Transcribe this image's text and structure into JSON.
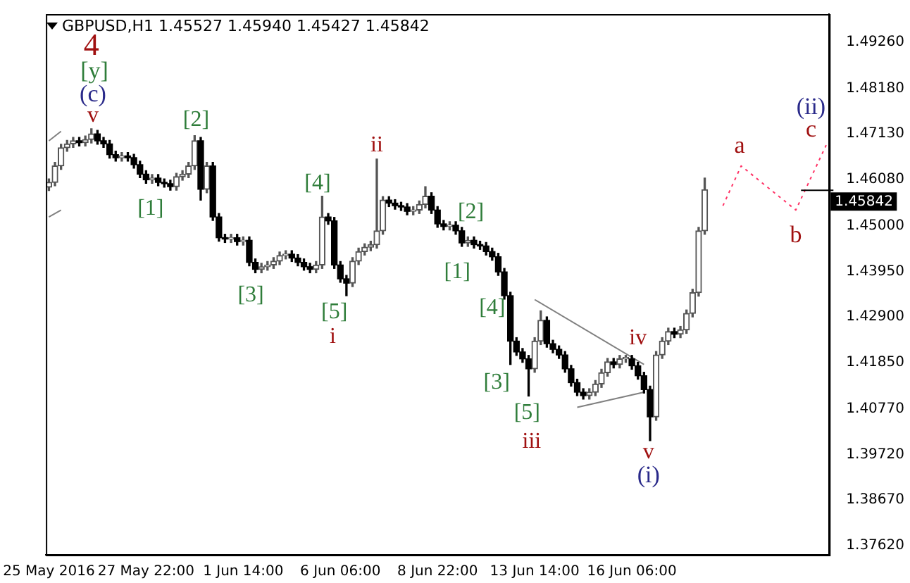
{
  "chart_data": {
    "type": "candlestick",
    "title": "GBPUSD,H1 1.45527 1.45940 1.45427 1.45842",
    "categories": [
      "25 May 2016",
      null,
      null,
      null,
      null,
      null,
      null,
      null,
      null,
      null,
      null,
      null,
      null,
      null,
      null,
      null,
      "27 May 22:00",
      null,
      null,
      null,
      null,
      null,
      null,
      null,
      null,
      null,
      null,
      null,
      null,
      null,
      null,
      null,
      "1 Jun 14:00",
      null,
      null,
      null,
      null,
      null,
      null,
      null,
      null,
      null,
      null,
      null,
      null,
      null,
      null,
      null,
      "6 Jun 06:00",
      null,
      null,
      null,
      null,
      null,
      null,
      null,
      null,
      null,
      null,
      null,
      null,
      null,
      null,
      null,
      "8 Jun 22:00",
      null,
      null,
      null,
      null,
      null,
      null,
      null,
      null,
      null,
      null,
      null,
      null,
      null,
      null,
      null,
      "13 Jun 14:00",
      null,
      null,
      null,
      null,
      null,
      null,
      null,
      null,
      null,
      null,
      null,
      null,
      null,
      null,
      null,
      "16 Jun 06:00",
      null,
      null,
      null,
      null,
      null,
      null,
      null,
      null,
      null,
      null,
      null,
      null,
      null,
      null,
      null,
      null,
      null,
      null,
      null,
      null,
      null,
      null,
      null,
      null,
      null,
      null,
      null,
      null,
      null,
      null,
      null,
      null
    ],
    "series": [
      {
        "type": "candlestick",
        "colors": [
          "#555555",
          "#555555",
          "#555555",
          "#555555",
          "#555555",
          "#000000",
          "#555555",
          "#555555",
          "#000000",
          "#000000",
          "#000000",
          "#000000",
          "#555555",
          "#000000",
          "#000000",
          "#000000",
          "#000000",
          "#555555",
          "#000000",
          "#000000",
          "#000000",
          "#555555",
          "#555555",
          "#555555",
          "#555555",
          "#000000",
          "#555555",
          "#000000",
          "#000000",
          "#000000",
          "#555555",
          "#000000",
          "#555555",
          "#000000",
          "#000000",
          "#555555",
          "#555555",
          "#555555",
          "#555555",
          "#555555",
          "#000000",
          "#000000",
          "#000000",
          "#000000",
          "#555555",
          "#555555",
          "#000000",
          "#000000",
          "#000000",
          "#000000",
          "#555555",
          "#555555",
          "#555555",
          "#555555",
          "#555555",
          "#555555",
          "#000000",
          "#000000",
          "#000000",
          "#000000",
          "#555555",
          "#555555",
          "#555555",
          "#000000",
          "#000000",
          "#000000",
          "#555555",
          "#000000",
          "#000000",
          "#555555",
          "#000000",
          "#000000",
          "#000000",
          "#000000",
          "#000000",
          "#000000",
          "#000000",
          "#000000",
          "#000000",
          "#000000",
          "#555555",
          "#555555",
          "#000000",
          "#000000",
          "#000000",
          "#000000",
          "#000000",
          "#000000",
          "#000000",
          "#555555",
          "#555555",
          "#555555",
          "#555555",
          "#000000",
          "#555555",
          "#555555",
          "#000000",
          "#000000",
          "#000000",
          "#000000",
          "#555555",
          "#555555",
          "#555555",
          "#000000",
          "#555555",
          "#555555",
          "#555555",
          "#555555",
          "#555555",
          null,
          null,
          null,
          null,
          null,
          null,
          null,
          null,
          null,
          null,
          null,
          null,
          null,
          null,
          null,
          null,
          null,
          null,
          null,
          null
        ],
        "ohlc": [
          [
            1.459,
            1.4609,
            1.4582,
            1.4601
          ],
          [
            1.4601,
            1.4647,
            1.4593,
            1.4639
          ],
          [
            1.4639,
            1.4689,
            1.4631,
            1.4681
          ],
          [
            1.4681,
            1.4698,
            1.4673,
            1.469
          ],
          [
            1.469,
            1.4705,
            1.4682,
            1.4697
          ],
          [
            1.4697,
            1.4705,
            1.4685,
            1.4693
          ],
          [
            1.4693,
            1.4708,
            1.4685,
            1.47
          ],
          [
            1.47,
            1.4725,
            1.4692,
            1.4713
          ],
          [
            1.4713,
            1.4721,
            1.4689,
            1.4697
          ],
          [
            1.4697,
            1.4705,
            1.4682,
            1.469
          ],
          [
            1.469,
            1.4698,
            1.4657,
            1.4665
          ],
          [
            1.4665,
            1.4673,
            1.465,
            1.4658
          ],
          [
            1.4658,
            1.467,
            1.465,
            1.4662
          ],
          [
            1.4662,
            1.467,
            1.465,
            1.4658
          ],
          [
            1.4658,
            1.4666,
            1.4634,
            1.4642
          ],
          [
            1.4642,
            1.465,
            1.4612,
            1.462
          ],
          [
            1.462,
            1.4628,
            1.4599,
            1.4607
          ],
          [
            1.4607,
            1.4619,
            1.4599,
            1.4611
          ],
          [
            1.4611,
            1.4619,
            1.4593,
            1.4601
          ],
          [
            1.4601,
            1.4609,
            1.459,
            1.4598
          ],
          [
            1.4598,
            1.4606,
            1.4583,
            1.4591
          ],
          [
            1.4591,
            1.4622,
            1.4583,
            1.4614
          ],
          [
            1.4614,
            1.4628,
            1.4606,
            1.462
          ],
          [
            1.462,
            1.4647,
            1.4612,
            1.4639
          ],
          [
            1.4639,
            1.4709,
            1.4631,
            1.4697
          ],
          [
            1.4697,
            1.4705,
            1.456,
            1.4585
          ],
          [
            1.4585,
            1.4647,
            1.4577,
            1.4639
          ],
          [
            1.4639,
            1.4647,
            1.4513,
            1.4521
          ],
          [
            1.4521,
            1.4529,
            1.4465,
            1.4473
          ],
          [
            1.4473,
            1.4481,
            1.4462,
            1.447
          ],
          [
            1.447,
            1.4481,
            1.4462,
            1.4473
          ],
          [
            1.4473,
            1.4481,
            1.4456,
            1.4464
          ],
          [
            1.4464,
            1.4475,
            1.4456,
            1.4467
          ],
          [
            1.4467,
            1.4475,
            1.4408,
            1.4416
          ],
          [
            1.4416,
            1.4424,
            1.4392,
            1.44
          ],
          [
            1.44,
            1.4414,
            1.4392,
            1.4406
          ],
          [
            1.4406,
            1.4418,
            1.4398,
            1.441
          ],
          [
            1.441,
            1.4427,
            1.4402,
            1.4419
          ],
          [
            1.4419,
            1.444,
            1.4411,
            1.4432
          ],
          [
            1.4432,
            1.4443,
            1.4424,
            1.4435
          ],
          [
            1.4435,
            1.4443,
            1.4418,
            1.4426
          ],
          [
            1.4426,
            1.4434,
            1.4408,
            1.4416
          ],
          [
            1.4416,
            1.4424,
            1.4398,
            1.4406
          ],
          [
            1.4406,
            1.4414,
            1.4392,
            1.44
          ],
          [
            1.44,
            1.4418,
            1.4392,
            1.441
          ],
          [
            1.441,
            1.4569,
            1.4402,
            1.4521
          ],
          [
            1.4521,
            1.4529,
            1.4504,
            1.4512
          ],
          [
            1.4512,
            1.452,
            1.4402,
            1.441
          ],
          [
            1.441,
            1.4418,
            1.437,
            1.4378
          ],
          [
            1.4378,
            1.4386,
            1.4339,
            1.4368
          ],
          [
            1.4368,
            1.4427,
            1.436,
            1.4419
          ],
          [
            1.4419,
            1.4449,
            1.4411,
            1.4441
          ],
          [
            1.4441,
            1.4459,
            1.4433,
            1.4451
          ],
          [
            1.4451,
            1.4465,
            1.4443,
            1.4457
          ],
          [
            1.4457,
            1.4655,
            1.4449,
            1.4489
          ],
          [
            1.4489,
            1.4568,
            1.4481,
            1.456
          ],
          [
            1.456,
            1.4568,
            1.4545,
            1.4553
          ],
          [
            1.4553,
            1.4561,
            1.4539,
            1.4547
          ],
          [
            1.4547,
            1.4555,
            1.4536,
            1.4544
          ],
          [
            1.4544,
            1.4552,
            1.4526,
            1.4534
          ],
          [
            1.4534,
            1.4545,
            1.4526,
            1.4537
          ],
          [
            1.4537,
            1.4558,
            1.4529,
            1.455
          ],
          [
            1.455,
            1.4591,
            1.4542,
            1.4569
          ],
          [
            1.4569,
            1.4577,
            1.4529,
            1.4537
          ],
          [
            1.4537,
            1.4545,
            1.4497,
            1.4505
          ],
          [
            1.4505,
            1.4513,
            1.4491,
            1.4499
          ],
          [
            1.4499,
            1.451,
            1.4491,
            1.4502
          ],
          [
            1.4502,
            1.451,
            1.4481,
            1.4489
          ],
          [
            1.4489,
            1.4497,
            1.4453,
            1.4461
          ],
          [
            1.4461,
            1.4475,
            1.4453,
            1.4467
          ],
          [
            1.4467,
            1.4475,
            1.4449,
            1.4457
          ],
          [
            1.4457,
            1.4465,
            1.4446,
            1.4454
          ],
          [
            1.4454,
            1.4462,
            1.4433,
            1.4441
          ],
          [
            1.4441,
            1.4449,
            1.4421,
            1.4429
          ],
          [
            1.4429,
            1.4437,
            1.4386,
            1.4394
          ],
          [
            1.4394,
            1.4402,
            1.4331,
            1.4339
          ],
          [
            1.4339,
            1.4347,
            1.418,
            1.4234
          ],
          [
            1.4234,
            1.4242,
            1.4201,
            1.4209
          ],
          [
            1.4209,
            1.4217,
            1.4185,
            1.4193
          ],
          [
            1.4193,
            1.4201,
            1.4107,
            1.417
          ],
          [
            1.417,
            1.4242,
            1.4162,
            1.4234
          ],
          [
            1.4234,
            1.4304,
            1.4226,
            1.4282
          ],
          [
            1.4282,
            1.429,
            1.422,
            1.4228
          ],
          [
            1.4228,
            1.4236,
            1.4207,
            1.4215
          ],
          [
            1.4215,
            1.4223,
            1.4194,
            1.4202
          ],
          [
            1.4202,
            1.421,
            1.4162,
            1.417
          ],
          [
            1.417,
            1.4178,
            1.413,
            1.4138
          ],
          [
            1.4138,
            1.4146,
            1.4108,
            1.4116
          ],
          [
            1.4116,
            1.4124,
            1.41,
            1.4108
          ],
          [
            1.4108,
            1.4124,
            1.41,
            1.4116
          ],
          [
            1.4116,
            1.4143,
            1.4108,
            1.4135
          ],
          [
            1.4135,
            1.4169,
            1.4127,
            1.4161
          ],
          [
            1.4161,
            1.4194,
            1.4153,
            1.4186
          ],
          [
            1.4186,
            1.4194,
            1.4172,
            1.418
          ],
          [
            1.418,
            1.4201,
            1.4172,
            1.4193
          ],
          [
            1.4193,
            1.4201,
            1.4185,
            1.4193
          ],
          [
            1.4193,
            1.4201,
            1.4169,
            1.4177
          ],
          [
            1.4177,
            1.4185,
            1.4146,
            1.4154
          ],
          [
            1.4154,
            1.4162,
            1.4114,
            1.4122
          ],
          [
            1.4122,
            1.413,
            1.4004,
            1.4059
          ],
          [
            1.4059,
            1.421,
            1.4051,
            1.4202
          ],
          [
            1.4202,
            1.4242,
            1.4194,
            1.4234
          ],
          [
            1.4234,
            1.4264,
            1.4226,
            1.4256
          ],
          [
            1.4256,
            1.4264,
            1.4242,
            1.425
          ],
          [
            1.425,
            1.4268,
            1.4242,
            1.426
          ],
          [
            1.426,
            1.4306,
            1.4252,
            1.4298
          ],
          [
            1.4298,
            1.4354,
            1.429,
            1.4346
          ],
          [
            1.4346,
            1.4497,
            1.4338,
            1.4489
          ],
          [
            1.4489,
            1.4611,
            1.4481,
            1.45842
          ],
          null,
          null,
          null,
          null,
          null,
          null,
          null,
          null,
          null,
          null,
          null,
          null,
          null,
          null,
          null,
          null,
          null,
          null,
          null,
          null
        ]
      },
      {
        "type": "line",
        "color": "#ff3366",
        "line_style": "dotted",
        "values": [
          null,
          null,
          null,
          null,
          null,
          null,
          null,
          null,
          null,
          null,
          null,
          null,
          null,
          null,
          null,
          null,
          null,
          null,
          null,
          null,
          null,
          null,
          null,
          null,
          null,
          null,
          null,
          null,
          null,
          null,
          null,
          null,
          null,
          null,
          null,
          null,
          null,
          null,
          null,
          null,
          null,
          null,
          null,
          null,
          null,
          null,
          null,
          null,
          null,
          null,
          null,
          null,
          null,
          null,
          null,
          null,
          null,
          null,
          null,
          null,
          null,
          null,
          null,
          null,
          null,
          null,
          null,
          null,
          null,
          null,
          null,
          null,
          null,
          null,
          null,
          null,
          null,
          null,
          null,
          null,
          null,
          null,
          null,
          null,
          null,
          null,
          null,
          null,
          null,
          null,
          null,
          null,
          null,
          null,
          null,
          null,
          null,
          null,
          null,
          null,
          null,
          null,
          null,
          null,
          null,
          null,
          null,
          null,
          null,
          null,
          null,
          1.4547,
          null,
          null,
          1.4639,
          null,
          null,
          null,
          null,
          null,
          null,
          null,
          null,
          1.4537,
          null,
          null,
          null,
          null,
          1.4687
        ]
      },
      {
        "type": "line",
        "color": "#808080",
        "line_style": "solid",
        "values": [
          null,
          null,
          null,
          null,
          null,
          null,
          null,
          null,
          null,
          null,
          null,
          null,
          null,
          null,
          null,
          null,
          null,
          null,
          null,
          null,
          null,
          null,
          null,
          null,
          null,
          null,
          null,
          null,
          null,
          null,
          null,
          null,
          null,
          null,
          null,
          null,
          null,
          null,
          null,
          null,
          null,
          null,
          null,
          null,
          null,
          null,
          null,
          null,
          null,
          null,
          null,
          null,
          null,
          null,
          null,
          null,
          null,
          null,
          null,
          null,
          null,
          null,
          null,
          null,
          null,
          null,
          null,
          null,
          null,
          null,
          null,
          null,
          null,
          null,
          null,
          null,
          null,
          null,
          null,
          null,
          1.433,
          null,
          null,
          null,
          null,
          null,
          null,
          null,
          null,
          null,
          null,
          null,
          null,
          null,
          null,
          null,
          null,
          null,
          1.418,
          null,
          null,
          null,
          null,
          null,
          null,
          null,
          null,
          null,
          null,
          null,
          null,
          null,
          null,
          null,
          null,
          null,
          null,
          null,
          null,
          null,
          null,
          null,
          null,
          null,
          null,
          null,
          null,
          null,
          null
        ]
      },
      {
        "type": "line",
        "color": "#808080",
        "line_style": "solid",
        "values": [
          null,
          null,
          null,
          null,
          null,
          null,
          null,
          null,
          null,
          null,
          null,
          null,
          null,
          null,
          null,
          null,
          null,
          null,
          null,
          null,
          null,
          null,
          null,
          null,
          null,
          null,
          null,
          null,
          null,
          null,
          null,
          null,
          null,
          null,
          null,
          null,
          null,
          null,
          null,
          null,
          null,
          null,
          null,
          null,
          null,
          null,
          null,
          null,
          null,
          null,
          null,
          null,
          null,
          null,
          null,
          null,
          null,
          null,
          null,
          null,
          null,
          null,
          null,
          null,
          null,
          null,
          null,
          null,
          null,
          null,
          null,
          null,
          null,
          null,
          null,
          null,
          null,
          null,
          null,
          null,
          null,
          null,
          null,
          null,
          null,
          null,
          null,
          1.4081,
          null,
          null,
          null,
          null,
          null,
          null,
          null,
          null,
          null,
          null,
          1.4116,
          null,
          null,
          null,
          null,
          null,
          null,
          null,
          null,
          null,
          null,
          null,
          null,
          null,
          null,
          null,
          null,
          null,
          null,
          null,
          null,
          null,
          null,
          null,
          null,
          null,
          null,
          null,
          null,
          null,
          null
        ]
      },
      {
        "type": "line",
        "color": "#808080",
        "line_style": "solid",
        "values": [
          1.4697,
          null,
          1.4719,
          null,
          null,
          null,
          null,
          null,
          null,
          null,
          null,
          null,
          null,
          null,
          null,
          null,
          null,
          null,
          null,
          null,
          null,
          null,
          null,
          null,
          null,
          null,
          null,
          null,
          null,
          null,
          null,
          null,
          null,
          null,
          null,
          null,
          null,
          null,
          null,
          null,
          null,
          null,
          null,
          null,
          null,
          null,
          null,
          null,
          null,
          null,
          null,
          null,
          null,
          null,
          null,
          null,
          null,
          null,
          null,
          null,
          null,
          null,
          null,
          null,
          null,
          null,
          null,
          null,
          null,
          null,
          null,
          null,
          null,
          null,
          null,
          null,
          null,
          null,
          null,
          null,
          null,
          null,
          null,
          null,
          null,
          null,
          null,
          null,
          null,
          null,
          null,
          null,
          null,
          null,
          null,
          null,
          null,
          null,
          null,
          null,
          null,
          null,
          null,
          null,
          null,
          null,
          null,
          null,
          null,
          null,
          null,
          null,
          null,
          null,
          null,
          null,
          null,
          null,
          null,
          null,
          null,
          null,
          null,
          null,
          null,
          null,
          null,
          null,
          null
        ]
      },
      {
        "type": "line",
        "color": "#808080",
        "line_style": "solid",
        "values": [
          1.4521,
          null,
          1.4537,
          null,
          null,
          null,
          null,
          null,
          null,
          null,
          null,
          null,
          null,
          null,
          null,
          null,
          null,
          null,
          null,
          null,
          null,
          null,
          null,
          null,
          null,
          null,
          null,
          null,
          null,
          null,
          null,
          null,
          null,
          null,
          null,
          null,
          null,
          null,
          null,
          null,
          null,
          null,
          null,
          null,
          null,
          null,
          null,
          null,
          null,
          null,
          null,
          null,
          null,
          null,
          null,
          null,
          null,
          null,
          null,
          null,
          null,
          null,
          null,
          null,
          null,
          null,
          null,
          null,
          null,
          null,
          null,
          null,
          null,
          null,
          null,
          null,
          null,
          null,
          null,
          null,
          null,
          null,
          null,
          null,
          null,
          null,
          null,
          null,
          null,
          null,
          null,
          null,
          null,
          null,
          null,
          null,
          null,
          null,
          null,
          null,
          null,
          null,
          null,
          null,
          null,
          null,
          null,
          null,
          null,
          null,
          null,
          null,
          null,
          null,
          null,
          null,
          null,
          null,
          null,
          null,
          null,
          null,
          null,
          null,
          null,
          null,
          null,
          null,
          null
        ]
      }
    ],
    "ylim": [
      1.374,
      1.499
    ],
    "yticks": [
      {
        "value": 1.3762,
        "label": "1.37620"
      },
      {
        "value": 1.3867,
        "label": "1.38670"
      },
      {
        "value": 1.3972,
        "label": "1.39720"
      },
      {
        "value": 1.4077,
        "label": "1.40770"
      },
      {
        "value": 1.4185,
        "label": "1.41850"
      },
      {
        "value": 1.429,
        "label": "1.42900"
      },
      {
        "value": 1.4395,
        "label": "1.43950"
      },
      {
        "value": 1.45,
        "label": "1.45000"
      },
      {
        "value": 1.4608,
        "label": "1.46080"
      },
      {
        "value": 1.4713,
        "label": "1.47130"
      },
      {
        "value": 1.4818,
        "label": "1.48180"
      },
      {
        "value": 1.4926,
        "label": "1.49260"
      }
    ],
    "ref_lines": [
      {
        "axis": "y",
        "value": 1.45842,
        "label": "1.45842"
      }
    ],
    "annotations": [
      "4",
      "[y]",
      "(c)",
      "v",
      "[2]",
      "[1]",
      "[3]",
      "[4]",
      "[5]",
      "i",
      "ii",
      "[2]",
      "[1]",
      "[4]",
      "[3]",
      "[5]",
      "iii",
      "iv",
      "v",
      "(i)",
      "a",
      "b",
      "(ii)",
      "c"
    ],
    "grid": false,
    "legend": false
  }
}
